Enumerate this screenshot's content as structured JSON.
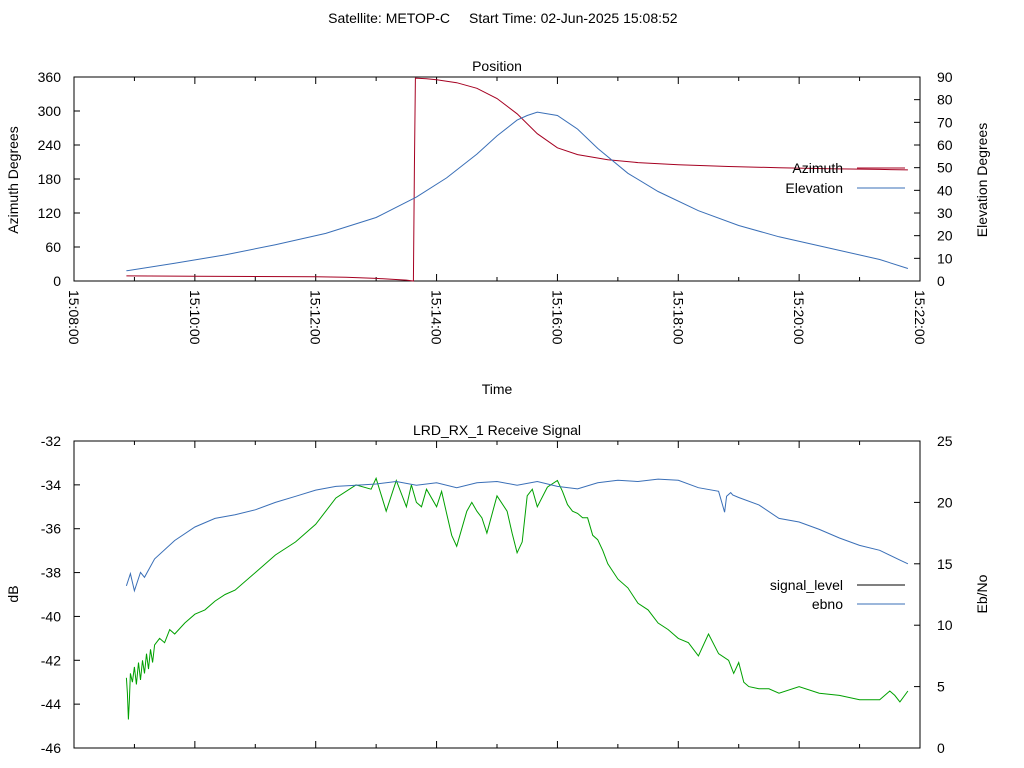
{
  "header": {
    "satellite": "Satellite: METOP-C",
    "start_time": "Start Time: 02-Jun-2025 15:08:52"
  },
  "chart_data": [
    {
      "type": "line",
      "title": "Position",
      "xlabel": "Time",
      "ylabel": "Azimuth Degrees",
      "y2label": "Elevation Degrees",
      "xlim": [
        0,
        840
      ],
      "ylim": [
        0,
        360
      ],
      "y2lim": [
        0,
        90
      ],
      "x_ticks": [
        "15:08:00",
        "15:10:00",
        "15:12:00",
        "15:14:00",
        "15:16:00",
        "15:18:00",
        "15:20:00",
        "15:22:00"
      ],
      "y_ticks": [
        0,
        60,
        120,
        180,
        240,
        300,
        360
      ],
      "y2_ticks": [
        0,
        10,
        20,
        30,
        40,
        50,
        60,
        70,
        80,
        90
      ],
      "legend_position": "right",
      "grid": false,
      "series": [
        {
          "name": "Azimuth",
          "axis": "y",
          "color": "#a50021",
          "x": [
            52,
            120,
            180,
            240,
            270,
            300,
            330,
            337,
            338,
            339,
            350,
            360,
            380,
            400,
            420,
            440,
            460,
            480,
            500,
            530,
            560,
            600,
            650,
            700,
            750,
            800,
            828
          ],
          "y": [
            9,
            8.5,
            8,
            7.5,
            6.5,
            4.5,
            1.5,
            0,
            200,
            358,
            357,
            355,
            350,
            340,
            322,
            295,
            260,
            235,
            223,
            214,
            209,
            205,
            202,
            200,
            198,
            197,
            196
          ]
        },
        {
          "name": "Elevation",
          "axis": "y2",
          "color": "#3a6fb7",
          "x": [
            52,
            100,
            150,
            200,
            250,
            300,
            340,
            370,
            400,
            420,
            440,
            450,
            460,
            480,
            500,
            520,
            550,
            580,
            620,
            660,
            700,
            750,
            800,
            828
          ],
          "y": [
            4.5,
            7.8,
            11.5,
            16,
            21,
            28,
            37,
            45.5,
            56,
            64,
            71,
            73,
            74.5,
            73,
            67,
            58.5,
            47.5,
            39.5,
            31,
            24.5,
            19.5,
            14.5,
            9.5,
            5.5
          ]
        }
      ]
    },
    {
      "type": "line",
      "title": "LRD_RX_1 Receive Signal",
      "xlabel": "",
      "ylabel": "dB",
      "y2label": "Eb/No",
      "xlim": [
        0,
        840
      ],
      "ylim": [
        -46,
        -32
      ],
      "y2lim": [
        0,
        25
      ],
      "y_ticks": [
        -46,
        -44,
        -42,
        -40,
        -38,
        -36,
        -34,
        -32
      ],
      "y2_ticks": [
        0,
        5,
        10,
        15,
        20,
        25
      ],
      "legend_position": "right",
      "grid": false,
      "series": [
        {
          "name": "signal_level",
          "axis": "y",
          "color": "#00a000",
          "x": [
            52,
            53,
            54,
            55,
            56,
            58,
            60,
            62,
            64,
            66,
            68,
            70,
            72,
            74,
            76,
            78,
            80,
            85,
            90,
            95,
            100,
            110,
            120,
            130,
            140,
            150,
            160,
            180,
            200,
            220,
            240,
            260,
            280,
            295,
            300,
            310,
            320,
            330,
            335,
            340,
            345,
            350,
            360,
            365,
            370,
            375,
            380,
            390,
            395,
            400,
            405,
            410,
            420,
            430,
            435,
            440,
            445,
            450,
            455,
            460,
            470,
            480,
            485,
            490,
            495,
            500,
            505,
            510,
            515,
            520,
            525,
            530,
            540,
            550,
            560,
            570,
            580,
            590,
            600,
            610,
            620,
            630,
            640,
            650,
            655,
            660,
            665,
            670,
            680,
            690,
            700,
            720,
            740,
            760,
            780,
            800,
            810,
            815,
            820,
            828
          ],
          "y": [
            -42.8,
            -43.5,
            -44.7,
            -43.8,
            -42.6,
            -43.0,
            -42.3,
            -43.1,
            -42.1,
            -42.9,
            -42.0,
            -42.6,
            -41.7,
            -42.4,
            -41.5,
            -42.1,
            -41.3,
            -41.0,
            -41.2,
            -40.6,
            -40.8,
            -40.3,
            -39.9,
            -39.7,
            -39.3,
            -39.0,
            -38.8,
            -38.0,
            -37.2,
            -36.6,
            -35.8,
            -34.6,
            -34.0,
            -34.2,
            -33.7,
            -35.2,
            -33.8,
            -35.0,
            -34.0,
            -34.8,
            -35.0,
            -34.2,
            -35.0,
            -34.3,
            -35.3,
            -36.3,
            -36.8,
            -35.2,
            -34.8,
            -35.2,
            -35.5,
            -36.2,
            -34.5,
            -35.2,
            -36.2,
            -37.1,
            -36.6,
            -34.5,
            -34.2,
            -35.0,
            -34.1,
            -33.8,
            -34.3,
            -34.9,
            -35.2,
            -35.3,
            -35.5,
            -35.5,
            -36.3,
            -36.5,
            -37.0,
            -37.6,
            -38.3,
            -38.7,
            -39.4,
            -39.7,
            -40.3,
            -40.6,
            -41.0,
            -41.2,
            -41.8,
            -40.8,
            -41.7,
            -42.0,
            -42.6,
            -42.1,
            -43.0,
            -43.2,
            -43.3,
            -43.3,
            -43.5,
            -43.2,
            -43.5,
            -43.6,
            -43.8,
            -43.8,
            -43.4,
            -43.6,
            -43.9,
            -43.4
          ],
          "y_panel_note": ""
        },
        {
          "name": "ebno",
          "axis": "y2",
          "color": "#3a6fb7",
          "x": [
            52,
            56,
            60,
            66,
            70,
            80,
            100,
            120,
            140,
            160,
            180,
            200,
            220,
            240,
            260,
            280,
            300,
            320,
            340,
            360,
            380,
            400,
            420,
            440,
            460,
            480,
            500,
            520,
            540,
            560,
            580,
            600,
            620,
            640,
            646,
            648,
            652,
            654,
            660,
            680,
            700,
            720,
            740,
            760,
            780,
            800,
            820,
            828
          ],
          "y": [
            13.2,
            14.2,
            12.8,
            14.3,
            13.9,
            15.4,
            16.9,
            18.0,
            18.7,
            19.0,
            19.4,
            20.0,
            20.5,
            21.0,
            21.3,
            21.4,
            21.5,
            21.7,
            21.4,
            21.6,
            21.2,
            21.6,
            21.7,
            21.4,
            21.7,
            21.3,
            21.1,
            21.6,
            21.8,
            21.7,
            21.9,
            21.8,
            21.2,
            20.9,
            19.2,
            20.5,
            20.8,
            20.6,
            20.4,
            19.8,
            18.7,
            18.4,
            17.8,
            17.1,
            16.5,
            16.1,
            15.3,
            15.0
          ]
        }
      ]
    }
  ]
}
